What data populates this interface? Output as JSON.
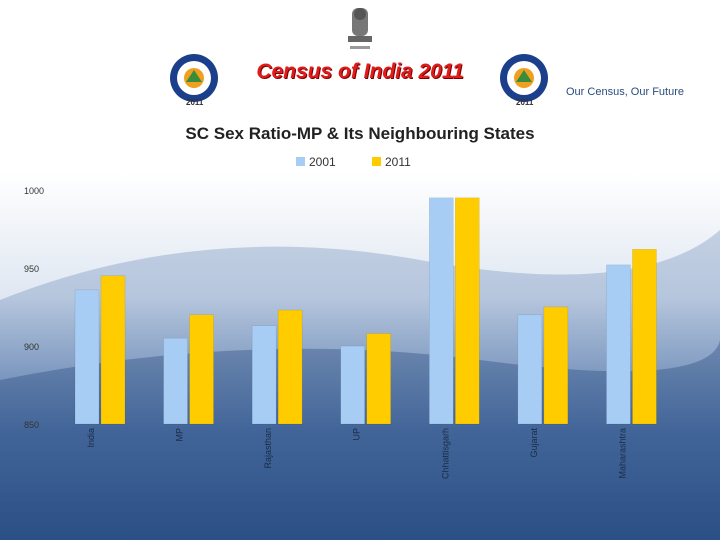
{
  "header": {
    "title": "Census of India 2011",
    "tagline": "Our Census, Our Future",
    "logo_year_left": "2011",
    "logo_year_right": "2011"
  },
  "chart_data": {
    "type": "bar",
    "title": "SC Sex Ratio-MP & Its Neighbouring States",
    "xlabel": "",
    "ylabel": "",
    "categories": [
      "India",
      "MP",
      "Rajasthan",
      "UP",
      "Chhattisgarh",
      "Gujarat",
      "Maharashtra"
    ],
    "series": [
      {
        "name": "2001",
        "values": [
          936,
          905,
          913,
          900,
          995,
          920,
          952
        ]
      },
      {
        "name": "2011",
        "values": [
          945,
          920,
          923,
          908,
          995,
          925,
          962
        ]
      }
    ],
    "ylim": [
      850,
      1000
    ],
    "yticks": [
      "850",
      "900",
      "950",
      "1000"
    ],
    "grid": false,
    "legend": "top",
    "colors": {
      "2001": "#a7cdf5",
      "2011": "#ffcc00"
    }
  }
}
